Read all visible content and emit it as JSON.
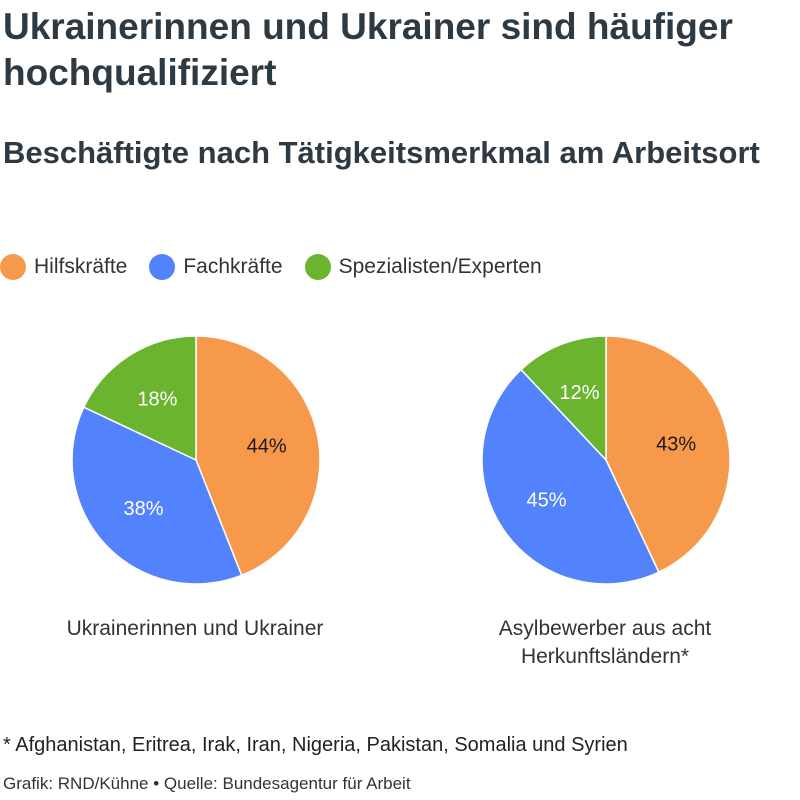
{
  "title": "Ukrainerinnen und Ukrainer sind häufiger hochqualifiziert",
  "subtitle": "Beschäftigte nach Tätigkeitsmerkmal am Arbeitsort",
  "colors": {
    "Hilfskräfte": "#f7994b",
    "Fachkräfte": "#5283fc",
    "Spezialisten/Experten": "#6bb42f"
  },
  "legend": [
    {
      "label": "Hilfskräfte",
      "color": "#f7994b"
    },
    {
      "label": "Fachkräfte",
      "color": "#5283fc"
    },
    {
      "label": "Spezialisten/Experten",
      "color": "#6bb42f"
    }
  ],
  "chart_data": [
    {
      "type": "pie",
      "caption": "Ukrainerinnen und Ukrainer",
      "categories": [
        "Hilfskräfte",
        "Fachkräfte",
        "Spezialisten/Experten"
      ],
      "values": [
        44,
        38,
        18
      ],
      "labels": [
        "44%",
        "38%",
        "18%"
      ]
    },
    {
      "type": "pie",
      "caption": "Asylbewerber aus acht Herkunftsländern*",
      "categories": [
        "Hilfskräfte",
        "Fachkräfte",
        "Spezialisten/Experten"
      ],
      "values": [
        43,
        45,
        12
      ],
      "labels": [
        "43%",
        "45%",
        "12%"
      ]
    }
  ],
  "footnote": "* Afghanistan, Eritrea, Irak, Iran, Nigeria, Pakistan, Somalia und Syrien",
  "source": "Grafik: RND/Kühne • Quelle: Bundesagentur für Arbeit"
}
